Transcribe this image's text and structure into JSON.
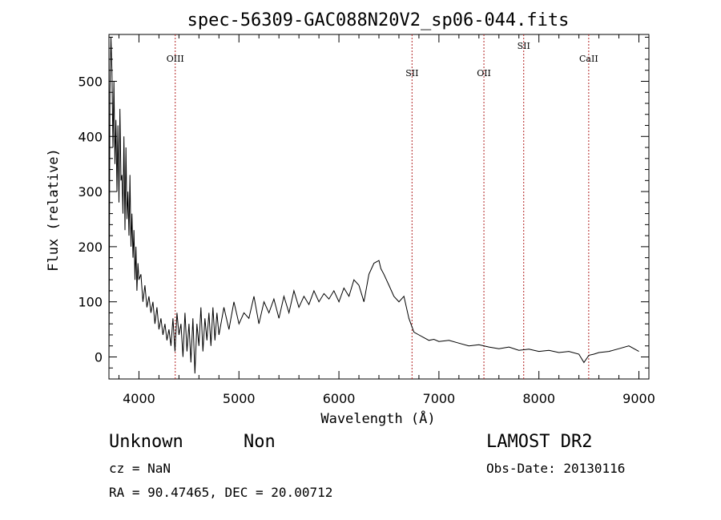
{
  "chart_data": {
    "type": "line",
    "title": "spec-56309-GAC088N20V2_sp06-044.fits",
    "xlabel": "Wavelength (Å)",
    "ylabel": "Flux (relative)",
    "xlim": [
      3700,
      9100
    ],
    "ylim": [
      -40,
      585
    ],
    "x_ticks": [
      4000,
      5000,
      6000,
      7000,
      8000,
      9000
    ],
    "y_ticks": [
      0,
      100,
      200,
      300,
      400,
      500
    ],
    "grid": false,
    "series_color": "#000000",
    "line_marker_color": "#b22222",
    "series": [
      {
        "x": [
          3700,
          3710,
          3720,
          3730,
          3740,
          3750,
          3760,
          3770,
          3780,
          3790,
          3800,
          3810,
          3820,
          3830,
          3840,
          3850,
          3860,
          3870,
          3880,
          3890,
          3900,
          3910,
          3920,
          3930,
          3940,
          3950,
          3960,
          3970,
          3980,
          3990,
          4000,
          4020,
          4040,
          4060,
          4080,
          4100,
          4120,
          4140,
          4160,
          4180,
          4200,
          4220,
          4240,
          4260,
          4280,
          4300,
          4320,
          4340,
          4360,
          4380,
          4400,
          4420,
          4440,
          4460,
          4480,
          4500,
          4520,
          4540,
          4560,
          4580,
          4600,
          4620,
          4640,
          4660,
          4680,
          4700,
          4720,
          4740,
          4760,
          4780,
          4800,
          4850,
          4900,
          4950,
          5000,
          5050,
          5100,
          5150,
          5200,
          5250,
          5300,
          5350,
          5400,
          5450,
          5500,
          5550,
          5600,
          5650,
          5700,
          5750,
          5800,
          5850,
          5900,
          5950,
          6000,
          6050,
          6100,
          6150,
          6200,
          6250,
          6300,
          6350,
          6400,
          6420,
          6450,
          6500,
          6550,
          6600,
          6650,
          6700,
          6750,
          6800,
          6850,
          6900,
          6950,
          7000,
          7100,
          7200,
          7300,
          7400,
          7500,
          7600,
          7700,
          7800,
          7900,
          8000,
          8100,
          8200,
          8300,
          8400,
          8450,
          8500,
          8550,
          8600,
          8700,
          8800,
          8900,
          9000
        ],
        "y": [
          -20,
          480,
          580,
          520,
          380,
          500,
          350,
          430,
          300,
          420,
          280,
          450,
          320,
          330,
          260,
          400,
          230,
          380,
          250,
          300,
          220,
          330,
          200,
          260,
          180,
          230,
          140,
          200,
          120,
          170,
          140,
          150,
          100,
          130,
          90,
          110,
          80,
          100,
          60,
          90,
          50,
          70,
          40,
          60,
          30,
          50,
          20,
          70,
          10,
          80,
          40,
          60,
          0,
          80,
          10,
          60,
          -10,
          70,
          -30,
          60,
          20,
          90,
          10,
          70,
          30,
          80,
          20,
          90,
          30,
          80,
          40,
          90,
          50,
          100,
          60,
          80,
          70,
          110,
          60,
          100,
          80,
          105,
          70,
          110,
          80,
          120,
          90,
          110,
          95,
          120,
          100,
          115,
          105,
          120,
          100,
          125,
          110,
          140,
          130,
          100,
          150,
          170,
          175,
          160,
          150,
          130,
          110,
          100,
          110,
          70,
          45,
          40,
          35,
          30,
          32,
          28,
          30,
          25,
          20,
          22,
          18,
          15,
          18,
          12,
          14,
          10,
          12,
          8,
          10,
          5,
          -10,
          3,
          5,
          8,
          10,
          15,
          20,
          10
        ]
      }
    ],
    "line_markers": [
      {
        "label": "OIII",
        "x": 4363
      },
      {
        "label": "SII",
        "x": 6731
      },
      {
        "label": "OII",
        "x": 7450
      },
      {
        "label": "SII",
        "x": 7848
      },
      {
        "label": "CaII",
        "x": 8498
      }
    ]
  },
  "info": {
    "classification": "Unknown",
    "subclass": "Non",
    "survey": "LAMOST DR2",
    "cz": "cz = NaN",
    "obs_date": "Obs-Date: 20130116",
    "coords": "RA =  90.47465, DEC =  20.00712"
  }
}
